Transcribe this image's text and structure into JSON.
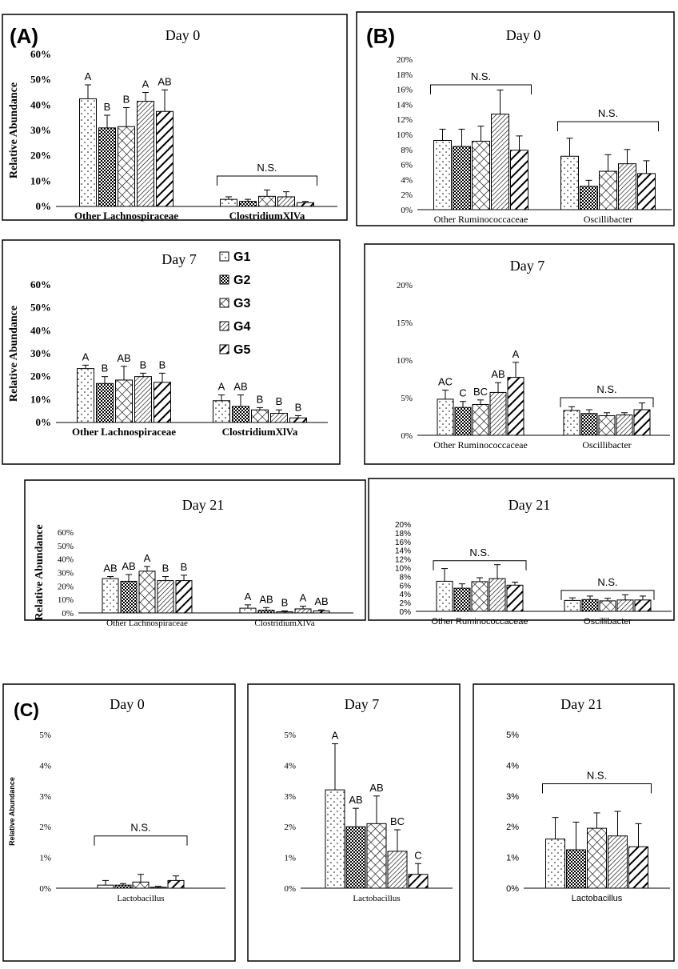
{
  "legend": {
    "entries": [
      {
        "label": "G1",
        "pattern": "dots"
      },
      {
        "label": "G2",
        "pattern": "checker"
      },
      {
        "label": "G3",
        "pattern": "cross"
      },
      {
        "label": "G4",
        "pattern": "hatch-thin"
      },
      {
        "label": "G5",
        "pattern": "hatch-thick"
      }
    ]
  },
  "chart_data": [
    {
      "type": "bar",
      "panel": "(A)",
      "title": "Day 0",
      "ylabel": "Relative Abundance",
      "ylim": [
        0,
        60
      ],
      "yticks": [
        "0%",
        "10%",
        "20%",
        "30%",
        "40%",
        "50%",
        "60%"
      ],
      "categories": [
        "Other Lachnospiraceae",
        "ClostridiumXlVa"
      ],
      "series": [
        {
          "name": "G1",
          "values": [
            42.5,
            2.8
          ],
          "errors": [
            5.5,
            1.0
          ]
        },
        {
          "name": "G2",
          "values": [
            31.0,
            2.0
          ],
          "errors": [
            5.0,
            0.8
          ]
        },
        {
          "name": "G3",
          "values": [
            31.5,
            4.0
          ],
          "errors": [
            7.5,
            2.5
          ]
        },
        {
          "name": "G4",
          "values": [
            41.5,
            3.8
          ],
          "errors": [
            3.5,
            2.0
          ]
        },
        {
          "name": "G5",
          "values": [
            37.5,
            1.5
          ],
          "errors": [
            8.5,
            0.5
          ]
        }
      ],
      "letters": [
        [
          "A",
          "B",
          "B",
          "A",
          "AB"
        ],
        [
          "",
          "",
          "",
          "",
          ""
        ]
      ],
      "brackets": [
        {
          "label": "N.S.",
          "category": 1,
          "y": 12
        }
      ]
    },
    {
      "type": "bar",
      "panel": "(B)",
      "title": "Day 0",
      "ylabel": "",
      "ylim": [
        0,
        20
      ],
      "yticks": [
        "0%",
        "2%",
        "4%",
        "6%",
        "8%",
        "10%",
        "12%",
        "14%",
        "16%",
        "18%",
        "20%"
      ],
      "categories": [
        "Other Ruminococcaceae",
        "Oscillibacter"
      ],
      "series": [
        {
          "name": "G1",
          "values": [
            9.2,
            7.1
          ],
          "errors": [
            1.5,
            2.4
          ]
        },
        {
          "name": "G2",
          "values": [
            8.4,
            3.1
          ],
          "errors": [
            2.3,
            0.8
          ]
        },
        {
          "name": "G3",
          "values": [
            9.1,
            5.1
          ],
          "errors": [
            2.0,
            2.2
          ]
        },
        {
          "name": "G4",
          "values": [
            12.7,
            6.1
          ],
          "errors": [
            3.2,
            1.9
          ]
        },
        {
          "name": "G5",
          "values": [
            7.9,
            4.8
          ],
          "errors": [
            1.9,
            1.7
          ]
        }
      ],
      "letters": [
        [
          "",
          "",
          "",
          "",
          ""
        ],
        [
          "",
          "",
          "",
          "",
          ""
        ]
      ],
      "brackets": [
        {
          "label": "N.S.",
          "category": 0,
          "y": 16.6
        },
        {
          "label": "N.S.",
          "category": 1,
          "y": 11.7
        }
      ]
    },
    {
      "type": "bar",
      "panel": "",
      "title": "Day 7",
      "ylabel": "Relative Abundance",
      "ylim": [
        0,
        60
      ],
      "yticks": [
        "0%",
        "10%",
        "20%",
        "30%",
        "40%",
        "50%",
        "60%"
      ],
      "categories": [
        "Other Lachnospiraceae",
        "ClostridiumXlVa"
      ],
      "series": [
        {
          "name": "G1",
          "values": [
            23.5,
            9.5
          ],
          "errors": [
            1.5,
            2.5
          ]
        },
        {
          "name": "G2",
          "values": [
            17.0,
            7.0
          ],
          "errors": [
            3.0,
            5.0
          ]
        },
        {
          "name": "G3",
          "values": [
            18.5,
            5.5
          ],
          "errors": [
            6.0,
            1.0
          ]
        },
        {
          "name": "G4",
          "values": [
            20.0,
            4.0
          ],
          "errors": [
            1.5,
            1.5
          ]
        },
        {
          "name": "G5",
          "values": [
            17.5,
            2.0
          ],
          "errors": [
            4.0,
            1.0
          ]
        }
      ],
      "letters": [
        [
          "A",
          "B",
          "AB",
          "B",
          "B"
        ],
        [
          "A",
          "AB",
          "B",
          "B",
          "B"
        ]
      ],
      "brackets": []
    },
    {
      "type": "bar",
      "panel": "",
      "title": "Day 7",
      "ylabel": "",
      "ylim": [
        0,
        20
      ],
      "yticks": [
        "0%",
        "5%",
        "10%",
        "15%",
        "20%"
      ],
      "categories": [
        "Other Ruminococcaceae",
        "Oscillibacter"
      ],
      "series": [
        {
          "name": "G1",
          "values": [
            4.8,
            3.3
          ],
          "errors": [
            1.2,
            0.5
          ]
        },
        {
          "name": "G2",
          "values": [
            3.7,
            2.9
          ],
          "errors": [
            0.8,
            0.5
          ]
        },
        {
          "name": "G3",
          "values": [
            4.1,
            2.6
          ],
          "errors": [
            0.6,
            0.4
          ]
        },
        {
          "name": "G4",
          "values": [
            5.7,
            2.7
          ],
          "errors": [
            1.3,
            0.3
          ]
        },
        {
          "name": "G5",
          "values": [
            7.7,
            3.4
          ],
          "errors": [
            2.0,
            0.9
          ]
        }
      ],
      "letters": [
        [
          "AC",
          "C",
          "BC",
          "AB",
          "A"
        ],
        [
          "",
          "",
          "",
          "",
          ""
        ]
      ],
      "brackets": [
        {
          "label": "N.S.",
          "category": 1,
          "y": 5
        }
      ]
    },
    {
      "type": "bar",
      "panel": "",
      "title": "Day 21",
      "ylabel": "Relative Abundance",
      "ylim": [
        0,
        60
      ],
      "yticks": [
        "0%",
        "10%",
        "20%",
        "30%",
        "40%",
        "50%",
        "60%"
      ],
      "categories": [
        "Other Lachnospiraceae",
        "ClostridiumXlVa"
      ],
      "series": [
        {
          "name": "G1",
          "values": [
            25.5,
            3.5
          ],
          "errors": [
            1.5,
            2.5
          ]
        },
        {
          "name": "G2",
          "values": [
            23.5,
            2.0
          ],
          "errors": [
            5.0,
            2.0
          ]
        },
        {
          "name": "G3",
          "values": [
            31.0,
            0.8
          ],
          "errors": [
            3.5,
            0.7
          ]
        },
        {
          "name": "G4",
          "values": [
            24.0,
            3.0
          ],
          "errors": [
            3.0,
            2.0
          ]
        },
        {
          "name": "G5",
          "values": [
            24.0,
            1.5
          ],
          "errors": [
            4.0,
            0.8
          ]
        }
      ],
      "letters": [
        [
          "AB",
          "AB",
          "A",
          "B",
          "B"
        ],
        [
          "A",
          "AB",
          "B",
          "A",
          "AB"
        ]
      ],
      "brackets": []
    },
    {
      "type": "bar",
      "panel": "",
      "title": "Day 21",
      "ylabel": "",
      "ylim": [
        0,
        20
      ],
      "yticks": [
        "0%",
        "2%",
        "4%",
        "6%",
        "8%",
        "10%",
        "12%",
        "14%",
        "16%",
        "18%",
        "20%"
      ],
      "categories": [
        "Other Ruminococcaceae",
        "Oscillibacter"
      ],
      "series": [
        {
          "name": "G1",
          "values": [
            6.9,
            2.5
          ],
          "errors": [
            2.9,
            0.6
          ]
        },
        {
          "name": "G2",
          "values": [
            5.3,
            2.7
          ],
          "errors": [
            1.0,
            0.8
          ]
        },
        {
          "name": "G3",
          "values": [
            6.8,
            2.4
          ],
          "errors": [
            0.9,
            0.6
          ]
        },
        {
          "name": "G4",
          "values": [
            7.5,
            2.6
          ],
          "errors": [
            3.2,
            1.2
          ]
        },
        {
          "name": "G5",
          "values": [
            6.0,
            2.6
          ],
          "errors": [
            0.7,
            0.9
          ]
        }
      ],
      "letters": [
        [
          "",
          "",
          "",
          "",
          ""
        ],
        [
          "",
          "",
          "",
          "",
          ""
        ]
      ],
      "brackets": [
        {
          "label": "N.S.",
          "category": 0,
          "y": 11.6
        },
        {
          "label": "N.S.",
          "category": 1,
          "y": 4.8
        }
      ]
    },
    {
      "type": "bar",
      "panel": "(C)",
      "title": "Day 0",
      "ylabel": "Relative Abundance",
      "ylim": [
        0,
        5
      ],
      "yticks": [
        "0%",
        "1%",
        "2%",
        "3%",
        "4%",
        "5%"
      ],
      "categories": [
        "Lactobacillus"
      ],
      "series": [
        {
          "name": "G1",
          "values": [
            0.1
          ],
          "errors": [
            0.15
          ]
        },
        {
          "name": "G2",
          "values": [
            0.1
          ],
          "errors": [
            0.05
          ]
        },
        {
          "name": "G3",
          "values": [
            0.2
          ],
          "errors": [
            0.25
          ]
        },
        {
          "name": "G4",
          "values": [
            0.03
          ],
          "errors": [
            0.03
          ]
        },
        {
          "name": "G5",
          "values": [
            0.25
          ],
          "errors": [
            0.15
          ]
        }
      ],
      "letters": [
        [
          "",
          "",
          "",
          "",
          ""
        ]
      ],
      "brackets": [
        {
          "label": "N.S.",
          "category": 0,
          "y": 1.7
        }
      ]
    },
    {
      "type": "bar",
      "panel": "",
      "title": "Day 7",
      "ylabel": "",
      "ylim": [
        0,
        5
      ],
      "yticks": [
        "0%",
        "1%",
        "2%",
        "3%",
        "4%",
        "5%"
      ],
      "categories": [
        "Lactobacillus"
      ],
      "series": [
        {
          "name": "G1",
          "values": [
            3.2
          ],
          "errors": [
            1.5
          ]
        },
        {
          "name": "G2",
          "values": [
            2.0
          ],
          "errors": [
            0.6
          ]
        },
        {
          "name": "G3",
          "values": [
            2.1
          ],
          "errors": [
            0.9
          ]
        },
        {
          "name": "G4",
          "values": [
            1.2
          ],
          "errors": [
            0.7
          ]
        },
        {
          "name": "G5",
          "values": [
            0.45
          ],
          "errors": [
            0.35
          ]
        }
      ],
      "letters": [
        [
          "A",
          "AB",
          "AB",
          "BC",
          "C"
        ]
      ],
      "brackets": []
    },
    {
      "type": "bar",
      "panel": "",
      "title": "Day 21",
      "ylabel": "",
      "ylim": [
        0,
        5
      ],
      "yticks": [
        "0%",
        "1%",
        "2%",
        "3%",
        "4%",
        "5%"
      ],
      "categories": [
        "Lactobacillus"
      ],
      "series": [
        {
          "name": "G1",
          "values": [
            1.6
          ],
          "errors": [
            0.7
          ]
        },
        {
          "name": "G2",
          "values": [
            1.25
          ],
          "errors": [
            0.9
          ]
        },
        {
          "name": "G3",
          "values": [
            1.95
          ],
          "errors": [
            0.5
          ]
        },
        {
          "name": "G4",
          "values": [
            1.7
          ],
          "errors": [
            0.8
          ]
        },
        {
          "name": "G5",
          "values": [
            1.35
          ],
          "errors": [
            0.75
          ]
        }
      ],
      "letters": [
        [
          "",
          "",
          "",
          "",
          ""
        ]
      ],
      "brackets": [
        {
          "label": "N.S.",
          "category": 0,
          "y": 3.4
        }
      ]
    }
  ]
}
